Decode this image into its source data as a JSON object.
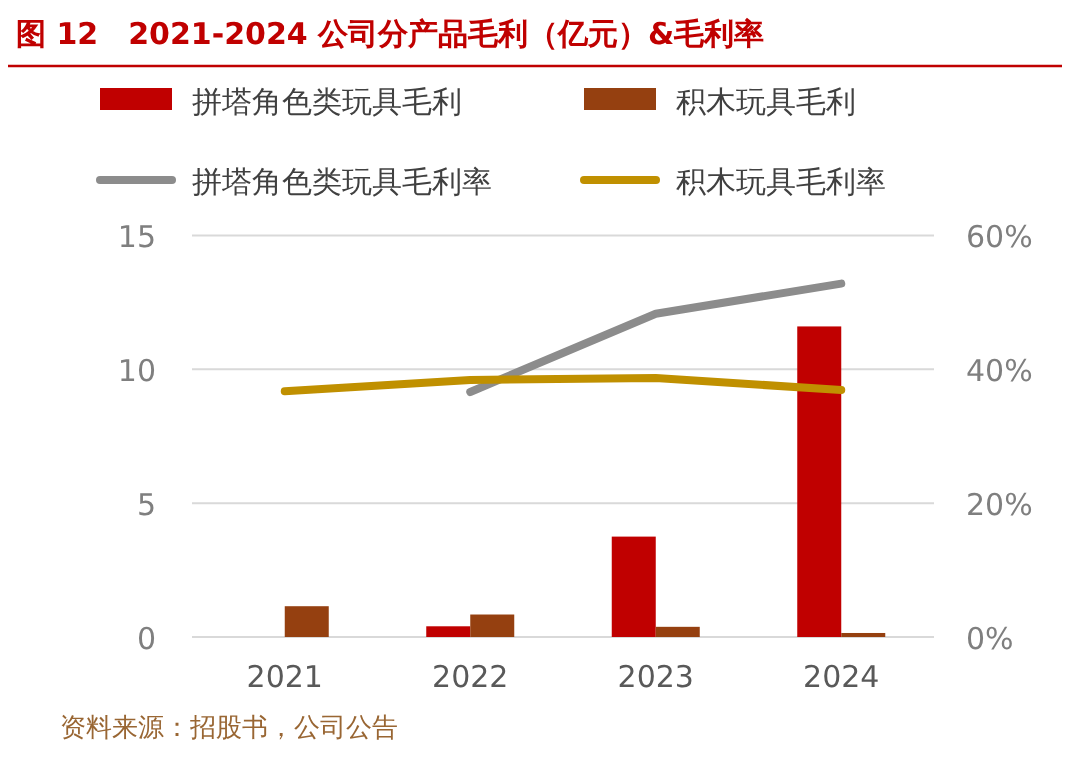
{
  "chart_data": {
    "type": "bar",
    "title": "图 12　2021-2024 公司分产品毛利（亿元）&毛利率",
    "categories": [
      "2021",
      "2022",
      "2023",
      "2024"
    ],
    "series": [
      {
        "name": "拼塔角色类玩具毛利",
        "color": "#c00000",
        "values": [
          null,
          0.4,
          3.75,
          11.6
        ]
      },
      {
        "name": "积木玩具毛利",
        "color": "#954010",
        "values": [
          1.15,
          0.84,
          0.38,
          0.15
        ]
      },
      {
        "name": "拼塔角色类玩具毛利率",
        "type": "line",
        "axis": "y2",
        "color": "#8c8c8c",
        "values": [
          null,
          36.6,
          48.3,
          52.8
        ]
      },
      {
        "name": "积木玩具毛利率",
        "type": "line",
        "axis": "y2",
        "color": "#c09000",
        "values": [
          36.7,
          38.4,
          38.7,
          36.9
        ]
      }
    ],
    "ylim": [
      0,
      15
    ],
    "yticks": [
      0,
      5,
      10,
      15
    ],
    "y2lim": [
      0,
      60
    ],
    "y2ticks": [
      {
        "value": 0,
        "label": "0%"
      },
      {
        "value": 20,
        "label": "20%"
      },
      {
        "value": 40,
        "label": "40%"
      },
      {
        "value": 60,
        "label": "60%"
      }
    ],
    "grid": "y",
    "legend": "top",
    "annotations": [
      "资料来源：招股书，公司公告"
    ]
  }
}
